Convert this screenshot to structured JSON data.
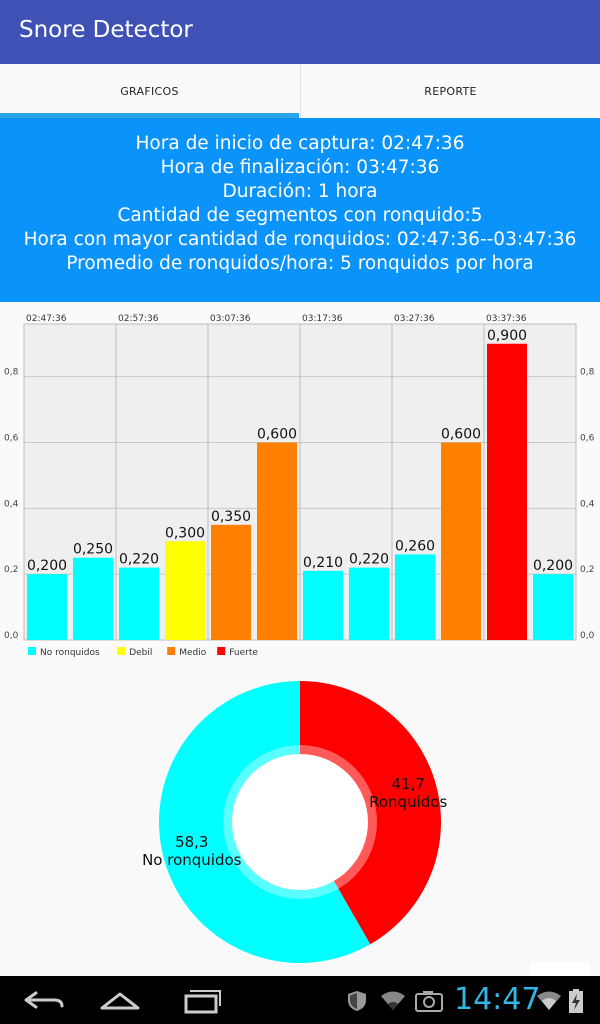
{
  "app": {
    "title": "Snore Detector"
  },
  "tabs": [
    {
      "label": "GRAFICOS",
      "selected": true
    },
    {
      "label": "REPORTE",
      "selected": false
    }
  ],
  "summary": {
    "lines": [
      "Hora de inicio de captura: 02:47:36",
      "Hora de finalización: 03:47:36",
      "Duración: 1 hora",
      "Cantidad de segmentos con ronquido:5",
      "Hora con mayor cantidad de ronquidos: 02:47:36--03:47:36",
      "Promedio de ronquidos/hora: 5 ronquidos por hora"
    ]
  },
  "chart_data": [
    {
      "type": "bar",
      "x_top_labels": [
        "02:47:36",
        "02:57:36",
        "03:07:36",
        "03:17:36",
        "03:27:36",
        "03:37:36"
      ],
      "values": [
        0.2,
        0.25,
        0.22,
        0.3,
        0.35,
        0.6,
        0.21,
        0.22,
        0.26,
        0.6,
        0.9,
        0.2
      ],
      "value_labels": [
        "0,200",
        "0,250",
        "0,220",
        "0,300",
        "0,350",
        "0,600",
        "0,210",
        "0,220",
        "0,260",
        "0,600",
        "0,900",
        "0,200"
      ],
      "categories_class": [
        "No ronquidos",
        "No ronquidos",
        "No ronquidos",
        "Debil",
        "Medio",
        "Medio",
        "No ronquidos",
        "No ronquidos",
        "No ronquidos",
        "Medio",
        "Fuerte",
        "No ronquidos"
      ],
      "ylim": [
        0,
        0.96
      ],
      "y_ticks": [
        0.0,
        0.2,
        0.4,
        0.6,
        0.8
      ],
      "y_tick_labels": [
        "0,0",
        "0,2",
        "0,4",
        "0,6",
        "0,8"
      ],
      "grid": true,
      "legend": [
        {
          "name": "No ronquidos",
          "color": "#00ffff"
        },
        {
          "name": "Debil",
          "color": "#ffff00"
        },
        {
          "name": "Medio",
          "color": "#ff8000"
        },
        {
          "name": "Fuerte",
          "color": "#ff0000"
        }
      ],
      "legend_placement": "bottom-left"
    },
    {
      "type": "pie",
      "donut": true,
      "slices": [
        {
          "label": "Ronquidos",
          "value": 41.7,
          "value_label": "41,7",
          "color": "#ff0000"
        },
        {
          "label": "No ronquidos",
          "value": 58.3,
          "value_label": "58,3",
          "color": "#00ffff"
        }
      ]
    }
  ],
  "status_bar": {
    "time": "14:47",
    "icons": [
      "shield-icon",
      "wifi-icon",
      "camera-icon",
      "wifi-signal-icon",
      "battery-charging-icon"
    ]
  },
  "nav_bar": {
    "buttons": [
      "back-icon",
      "home-icon",
      "recents-icon"
    ]
  }
}
